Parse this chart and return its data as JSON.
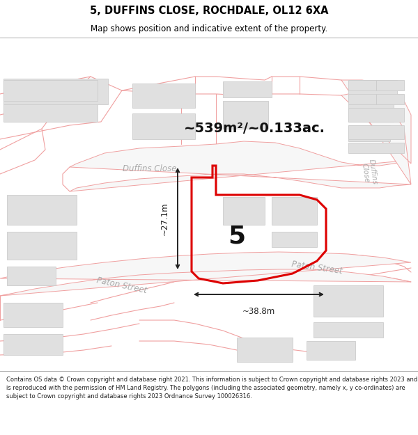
{
  "title": "5, DUFFINS CLOSE, ROCHDALE, OL12 6XA",
  "subtitle": "Map shows position and indicative extent of the property.",
  "footer": "Contains OS data © Crown copyright and database right 2021. This information is subject to Crown copyright and database rights 2023 and is reproduced with the permission of HM Land Registry. The polygons (including the associated geometry, namely x, y co-ordinates) are subject to Crown copyright and database rights 2023 Ordnance Survey 100026316.",
  "area_label": "~539m²/~0.133ac.",
  "dimension_h": "~27.1m",
  "dimension_w": "~38.8m",
  "property_number": "5",
  "bg_color": "#ffffff",
  "map_bg": "#ffffff",
  "road_stroke": "#f0a0a0",
  "road_fill": "#f7f7f7",
  "building_fill": "#e0e0e0",
  "building_stroke": "#cccccc",
  "road_band_fill": "#f5f5f5",
  "road_band_stroke": "#c0c0c0",
  "plot_stroke": "#dd0000",
  "dim_color": "#222222",
  "title_color": "#000000",
  "road_text_color": "#aaaaaa",
  "footer_color": "#222222"
}
